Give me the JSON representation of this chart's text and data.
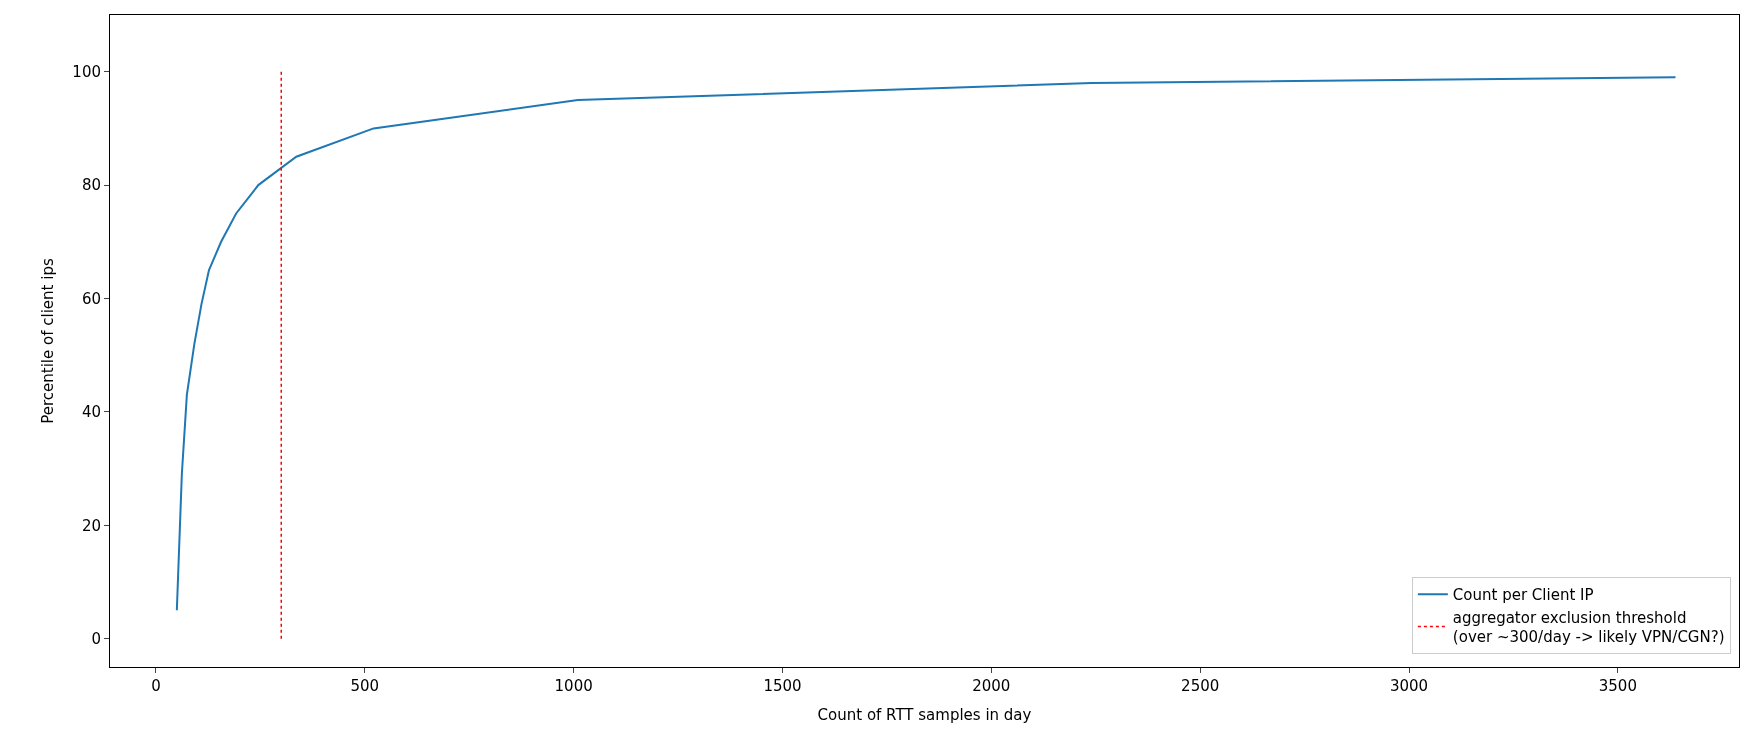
{
  "chart_data": {
    "type": "line",
    "xlabel": "Count of RTT samples in day",
    "ylabel": "Percentile of client ips",
    "series": [
      {
        "name": "Count per Client IP",
        "color": "#1f77b4",
        "x": [
          50,
          62,
          74,
          92,
          109,
          127,
          156,
          192,
          245,
          336,
          521,
          1010,
          2240,
          3638
        ],
        "values": [
          5,
          29,
          43,
          52,
          59,
          65,
          70,
          75,
          80,
          85,
          90,
          95,
          98,
          99
        ]
      },
      {
        "name": "aggregator exclusion threshold\n(over ~300/day -> likely VPN/CGN?)",
        "color": "#ff0000",
        "line_style": "dotted",
        "x": [
          300,
          300
        ],
        "values": [
          0,
          100
        ]
      }
    ],
    "xlim": [
      -110,
      3790
    ],
    "xticks": [
      0,
      500,
      1000,
      1500,
      2000,
      2500,
      3000,
      3500
    ],
    "ylim": [
      -5,
      110
    ],
    "yticks": [
      0,
      20,
      40,
      60,
      80,
      100
    ],
    "legend": "bottom right"
  }
}
